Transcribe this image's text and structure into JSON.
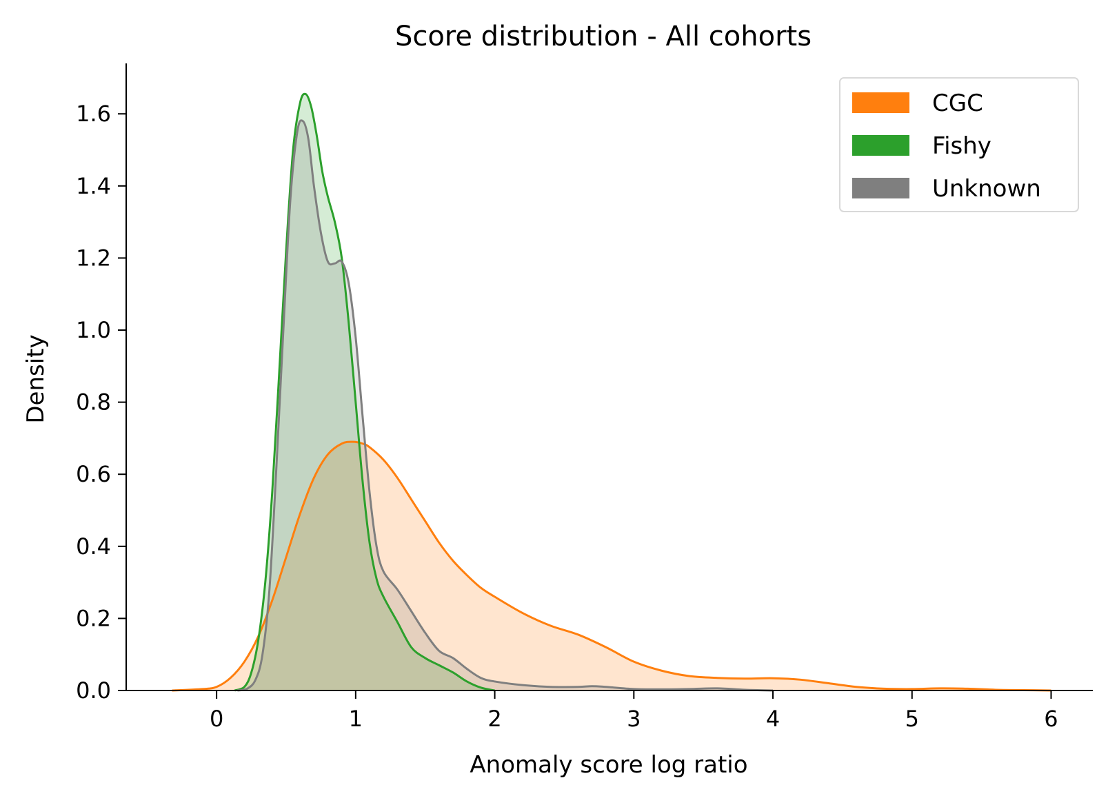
{
  "chart_data": {
    "type": "area",
    "title": "Score distribution - All cohorts",
    "xlabel": "Anomaly score log ratio",
    "ylabel": "Density",
    "xlim": [
      -0.65,
      6.3
    ],
    "ylim": [
      0,
      1.74
    ],
    "xticks": [
      0,
      1,
      2,
      3,
      4,
      5,
      6
    ],
    "xtick_labels": [
      "0",
      "1",
      "2",
      "3",
      "4",
      "5",
      "6"
    ],
    "yticks": [
      0,
      0.2,
      0.4,
      0.6,
      0.8,
      1.0,
      1.2,
      1.4,
      1.6
    ],
    "ytick_labels": [
      "0.0",
      "0.2",
      "0.4",
      "0.6",
      "0.8",
      "1.0",
      "1.2",
      "1.4",
      "1.6"
    ],
    "grid": false,
    "legend_position": "top-right",
    "series": [
      {
        "name": "CGC",
        "color": "#ff7f0e",
        "points": [
          [
            -0.32,
            0.0
          ],
          [
            -0.1,
            0.004
          ],
          [
            0.0,
            0.01
          ],
          [
            0.1,
            0.035
          ],
          [
            0.2,
            0.08
          ],
          [
            0.3,
            0.15
          ],
          [
            0.4,
            0.25
          ],
          [
            0.5,
            0.37
          ],
          [
            0.6,
            0.49
          ],
          [
            0.7,
            0.59
          ],
          [
            0.8,
            0.655
          ],
          [
            0.9,
            0.685
          ],
          [
            0.98,
            0.69
          ],
          [
            1.05,
            0.685
          ],
          [
            1.1,
            0.675
          ],
          [
            1.2,
            0.64
          ],
          [
            1.3,
            0.59
          ],
          [
            1.4,
            0.53
          ],
          [
            1.5,
            0.47
          ],
          [
            1.6,
            0.41
          ],
          [
            1.7,
            0.36
          ],
          [
            1.8,
            0.32
          ],
          [
            1.9,
            0.285
          ],
          [
            2.0,
            0.26
          ],
          [
            2.2,
            0.215
          ],
          [
            2.4,
            0.18
          ],
          [
            2.6,
            0.155
          ],
          [
            2.8,
            0.12
          ],
          [
            3.0,
            0.08
          ],
          [
            3.2,
            0.055
          ],
          [
            3.4,
            0.04
          ],
          [
            3.6,
            0.035
          ],
          [
            3.8,
            0.033
          ],
          [
            4.0,
            0.034
          ],
          [
            4.2,
            0.03
          ],
          [
            4.4,
            0.02
          ],
          [
            4.6,
            0.01
          ],
          [
            4.8,
            0.005
          ],
          [
            5.0,
            0.004
          ],
          [
            5.2,
            0.006
          ],
          [
            5.4,
            0.005
          ],
          [
            5.6,
            0.002
          ],
          [
            5.8,
            0.001
          ],
          [
            6.0,
            0.0
          ]
        ]
      },
      {
        "name": "Fishy",
        "color": "#2ca02c",
        "points": [
          [
            0.13,
            0.0
          ],
          [
            0.2,
            0.01
          ],
          [
            0.25,
            0.05
          ],
          [
            0.3,
            0.14
          ],
          [
            0.35,
            0.3
          ],
          [
            0.4,
            0.55
          ],
          [
            0.45,
            0.88
          ],
          [
            0.5,
            1.22
          ],
          [
            0.55,
            1.5
          ],
          [
            0.6,
            1.63
          ],
          [
            0.64,
            1.655
          ],
          [
            0.68,
            1.62
          ],
          [
            0.72,
            1.54
          ],
          [
            0.76,
            1.44
          ],
          [
            0.8,
            1.37
          ],
          [
            0.85,
            1.3
          ],
          [
            0.9,
            1.2
          ],
          [
            0.95,
            1.02
          ],
          [
            1.0,
            0.8
          ],
          [
            1.05,
            0.58
          ],
          [
            1.1,
            0.41
          ],
          [
            1.15,
            0.31
          ],
          [
            1.2,
            0.26
          ],
          [
            1.3,
            0.19
          ],
          [
            1.4,
            0.12
          ],
          [
            1.5,
            0.09
          ],
          [
            1.6,
            0.07
          ],
          [
            1.7,
            0.05
          ],
          [
            1.8,
            0.025
          ],
          [
            1.9,
            0.008
          ],
          [
            2.0,
            0.0
          ]
        ]
      },
      {
        "name": "Unknown",
        "color": "#7f7f7f",
        "points": [
          [
            0.15,
            0.0
          ],
          [
            0.22,
            0.005
          ],
          [
            0.28,
            0.03
          ],
          [
            0.33,
            0.1
          ],
          [
            0.38,
            0.28
          ],
          [
            0.43,
            0.62
          ],
          [
            0.48,
            1.0
          ],
          [
            0.53,
            1.36
          ],
          [
            0.58,
            1.55
          ],
          [
            0.62,
            1.58
          ],
          [
            0.66,
            1.53
          ],
          [
            0.7,
            1.4
          ],
          [
            0.75,
            1.27
          ],
          [
            0.8,
            1.19
          ],
          [
            0.85,
            1.185
          ],
          [
            0.9,
            1.19
          ],
          [
            0.95,
            1.13
          ],
          [
            1.0,
            0.98
          ],
          [
            1.05,
            0.76
          ],
          [
            1.1,
            0.55
          ],
          [
            1.15,
            0.4
          ],
          [
            1.2,
            0.33
          ],
          [
            1.3,
            0.28
          ],
          [
            1.4,
            0.22
          ],
          [
            1.5,
            0.16
          ],
          [
            1.6,
            0.11
          ],
          [
            1.7,
            0.09
          ],
          [
            1.8,
            0.06
          ],
          [
            1.9,
            0.035
          ],
          [
            2.0,
            0.025
          ],
          [
            2.2,
            0.015
          ],
          [
            2.4,
            0.01
          ],
          [
            2.6,
            0.01
          ],
          [
            2.7,
            0.012
          ],
          [
            2.8,
            0.01
          ],
          [
            3.0,
            0.004
          ],
          [
            3.2,
            0.003
          ],
          [
            3.4,
            0.004
          ],
          [
            3.6,
            0.006
          ],
          [
            3.8,
            0.002
          ],
          [
            4.0,
            0.0
          ]
        ]
      }
    ]
  }
}
